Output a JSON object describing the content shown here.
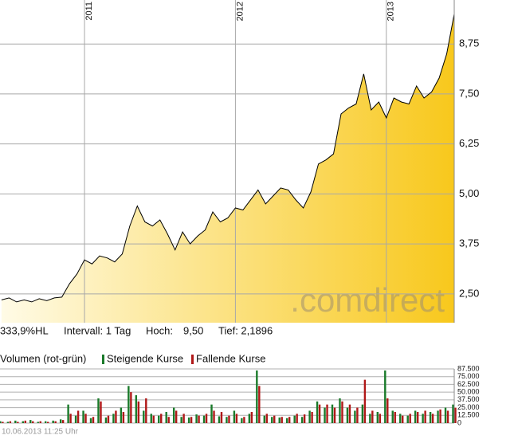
{
  "chart_data": [
    {
      "type": "area",
      "color": "#000000",
      "fill_colors": [
        "#fffbe6",
        "#f8c81c"
      ],
      "grid": true,
      "watermark": ".comdirect",
      "x": [
        2010.45,
        2010.5,
        2010.55,
        2010.6,
        2010.65,
        2010.7,
        2010.75,
        2010.8,
        2010.85,
        2010.9,
        2010.95,
        2011,
        2011.05,
        2011.1,
        2011.15,
        2011.2,
        2011.25,
        2011.3,
        2011.35,
        2011.4,
        2011.45,
        2011.5,
        2011.55,
        2011.6,
        2011.65,
        2011.7,
        2011.75,
        2011.8,
        2011.85,
        2011.9,
        2011.95,
        2012,
        2012.05,
        2012.1,
        2012.15,
        2012.2,
        2012.25,
        2012.3,
        2012.35,
        2012.4,
        2012.45,
        2012.5,
        2012.55,
        2012.6,
        2012.65,
        2012.7,
        2012.75,
        2012.8,
        2012.85,
        2012.9,
        2012.95,
        2013,
        2013.05,
        2013.1,
        2013.15,
        2013.2,
        2013.25,
        2013.3,
        2013.35,
        2013.4,
        2013.45
      ],
      "values": [
        2.35,
        2.4,
        2.3,
        2.35,
        2.3,
        2.38,
        2.33,
        2.4,
        2.42,
        2.75,
        3.0,
        3.35,
        3.25,
        3.45,
        3.4,
        3.3,
        3.5,
        4.2,
        4.7,
        4.3,
        4.2,
        4.35,
        4.0,
        3.6,
        4.05,
        3.75,
        3.95,
        4.1,
        4.55,
        4.3,
        4.4,
        4.65,
        4.6,
        4.85,
        5.1,
        4.75,
        4.95,
        5.15,
        5.1,
        4.85,
        4.65,
        5.05,
        5.75,
        5.85,
        6.0,
        7.0,
        7.15,
        7.25,
        8.0,
        7.1,
        7.3,
        6.9,
        7.4,
        7.3,
        7.25,
        7.7,
        7.4,
        7.55,
        7.9,
        8.5,
        9.5
      ],
      "xlim": [
        2010.44,
        2013.45
      ],
      "xticks": [
        2011,
        2012,
        2013
      ],
      "ylim": [
        1.78,
        9.85
      ],
      "yticks": [
        {
          "value": 2.5,
          "label": "2,50"
        },
        {
          "value": 3.75,
          "label": "3,75"
        },
        {
          "value": 5,
          "label": "5,00"
        },
        {
          "value": 6.25,
          "label": "6,25"
        },
        {
          "value": 7.5,
          "label": "7,50"
        },
        {
          "value": 8.75,
          "label": "8,75"
        }
      ]
    },
    {
      "type": "bar",
      "title": "Volumen (rot-grün)",
      "grid": true,
      "x": [
        2010.45,
        2010.5,
        2010.55,
        2010.6,
        2010.65,
        2010.7,
        2010.75,
        2010.8,
        2010.85,
        2010.9,
        2010.95,
        2011,
        2011.05,
        2011.1,
        2011.15,
        2011.2,
        2011.25,
        2011.3,
        2011.35,
        2011.4,
        2011.45,
        2011.5,
        2011.55,
        2011.6,
        2011.65,
        2011.7,
        2011.75,
        2011.8,
        2011.85,
        2011.9,
        2011.95,
        2012,
        2012.05,
        2012.1,
        2012.15,
        2012.2,
        2012.25,
        2012.3,
        2012.35,
        2012.4,
        2012.45,
        2012.5,
        2012.55,
        2012.6,
        2012.65,
        2012.7,
        2012.75,
        2012.8,
        2012.85,
        2012.9,
        2012.95,
        2013,
        2013.05,
        2013.1,
        2013.15,
        2013.2,
        2013.25,
        2013.3,
        2013.35,
        2013.4,
        2013.45
      ],
      "xlim": [
        2010.44,
        2013.45
      ],
      "series": [
        {
          "name": "Steigende Kurse",
          "color": "#1a7a2a",
          "values": [
            3000,
            2000,
            4000,
            3000,
            5000,
            2000,
            3000,
            4000,
            6000,
            30000,
            12000,
            20000,
            8000,
            40000,
            9000,
            15000,
            25000,
            60000,
            45000,
            20000,
            15000,
            12000,
            18000,
            25000,
            10000,
            9000,
            14000,
            12000,
            30000,
            11000,
            10000,
            20000,
            8000,
            15000,
            85000,
            12000,
            10000,
            9000,
            8000,
            12000,
            10000,
            20000,
            35000,
            25000,
            30000,
            40000,
            25000,
            20000,
            30000,
            15000,
            18000,
            85000,
            20000,
            15000,
            12000,
            20000,
            15000,
            18000,
            20000,
            25000,
            30000
          ]
        },
        {
          "name": "Fallende Kurse",
          "color": "#b01818",
          "values": [
            2000,
            3000,
            2000,
            4000,
            3000,
            3000,
            2000,
            3000,
            5000,
            15000,
            20000,
            15000,
            10000,
            35000,
            12000,
            20000,
            18000,
            50000,
            35000,
            40000,
            12000,
            15000,
            10000,
            20000,
            15000,
            10000,
            12000,
            15000,
            20000,
            18000,
            12000,
            15000,
            10000,
            18000,
            60000,
            15000,
            12000,
            10000,
            10000,
            15000,
            14000,
            18000,
            30000,
            30000,
            25000,
            35000,
            30000,
            25000,
            70000,
            20000,
            15000,
            40000,
            18000,
            12000,
            15000,
            18000,
            20000,
            15000,
            22000,
            20000,
            25000
          ]
        }
      ],
      "ylim": [
        0,
        87500
      ],
      "yticks": [
        0,
        {
          "value": 12500,
          "label": "12.500"
        },
        {
          "value": 25000,
          "label": "25.000"
        },
        {
          "value": 37500,
          "label": "37.500"
        },
        {
          "value": 50000,
          "label": "50.000"
        },
        {
          "value": 62500,
          "label": "62.500"
        },
        {
          "value": 75000,
          "label": "75.000"
        },
        {
          "value": 87500,
          "label": "87.500"
        }
      ]
    }
  ],
  "info": {
    "performance": "333,9%HL",
    "interval": "Intervall: 1 Tag",
    "high_label": "Hoch:",
    "high": "9,50",
    "low": "Tief: 2,1896"
  },
  "timestamp": "10.06.2013 11:25 Uhr"
}
